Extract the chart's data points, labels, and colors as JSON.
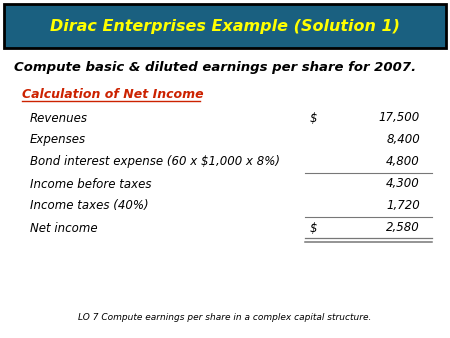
{
  "title": "Dirac Enterprises Example (Solution 1)",
  "title_bg_color": "#1a6080",
  "title_text_color": "#ffff00",
  "subtitle": "Compute basic & diluted earnings per share for 2007.",
  "section_header": "Calculation of Net Income",
  "section_header_color": "#cc2200",
  "rows": [
    {
      "label": "Revenues",
      "dollar": "$",
      "value": "17,500",
      "underline": false,
      "double_underline": false
    },
    {
      "label": "Expenses",
      "dollar": "",
      "value": "8,400",
      "underline": false,
      "double_underline": false
    },
    {
      "label": "Bond interest expense (60 x $1,000 x 8%)",
      "dollar": "",
      "value": "4,800",
      "underline": true,
      "double_underline": false
    },
    {
      "label": "Income before taxes",
      "dollar": "",
      "value": "4,300",
      "underline": false,
      "double_underline": false
    },
    {
      "label": "Income taxes (40%)",
      "dollar": "",
      "value": "1,720",
      "underline": true,
      "double_underline": false
    },
    {
      "label": "Net income",
      "dollar": "$",
      "value": "2,580",
      "underline": false,
      "double_underline": true
    }
  ],
  "footer": "LO 7 Compute earnings per share in a complex capital structure.",
  "bg_color": "#ffffff",
  "text_color": "#000000",
  "border_color": "#000000",
  "title_border_color": "#000000",
  "font_size_title": 11.5,
  "font_size_subtitle": 9.5,
  "font_size_section": 9.0,
  "font_size_rows": 8.5,
  "font_size_footer": 6.5
}
